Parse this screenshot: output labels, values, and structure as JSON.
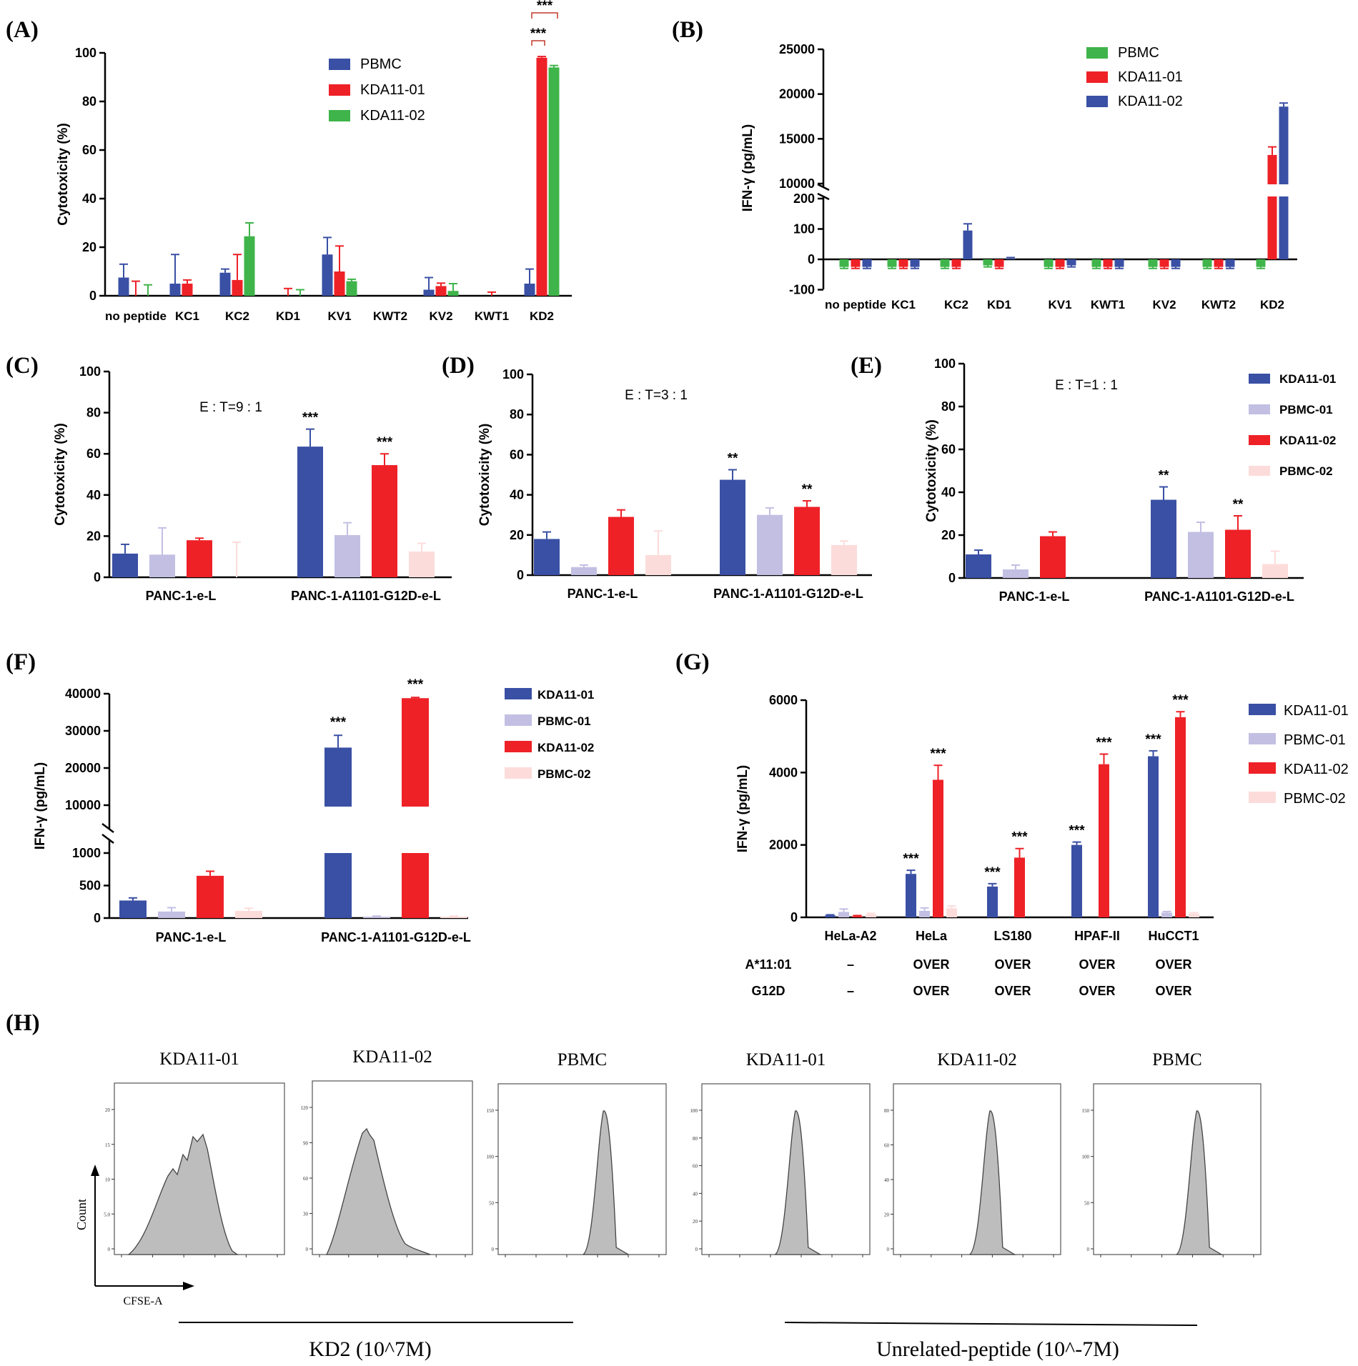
{
  "colors": {
    "blue": "#3a50a4",
    "red": "#ee2127",
    "green": "#3fb44a",
    "lavender": "#c2bfe3",
    "pink": "#fcdcda",
    "gray": "#bdbdbd"
  },
  "panels": {
    "A": {
      "label": "(A)"
    },
    "B": {
      "label": "(B)"
    },
    "C": {
      "label": "(C)"
    },
    "D": {
      "label": "(D)"
    },
    "E": {
      "label": "(E)"
    },
    "F": {
      "label": "(F)"
    },
    "G": {
      "label": "(G)"
    },
    "H": {
      "label": "(H)"
    }
  },
  "chart_data": [
    {
      "id": "A",
      "type": "bar",
      "ylabel": "Cytotoxicity (%)",
      "ylim": [
        0,
        100
      ],
      "yticks": [
        0,
        20,
        40,
        60,
        80,
        100
      ],
      "categories": [
        "no peptide",
        "KC1",
        "KC2",
        "KD1",
        "KV1",
        "KWT2",
        "KV2",
        "KWT1",
        "KD2"
      ],
      "series": [
        {
          "name": "PBMC",
          "color": "blue",
          "values": [
            7.5,
            5,
            9.5,
            0,
            17,
            0,
            2.5,
            0,
            5
          ],
          "errors": [
            5.5,
            12,
            1.5,
            0,
            7,
            0,
            5,
            0,
            6
          ]
        },
        {
          "name": "KDA11-01",
          "color": "red",
          "values": [
            0,
            5,
            6.5,
            0,
            10,
            0,
            4,
            0,
            98
          ],
          "errors": [
            6,
            1.5,
            10.5,
            3,
            10.5,
            0,
            1.2,
            1.5,
            0.5
          ]
        },
        {
          "name": "KDA11-02",
          "color": "green",
          "values": [
            0,
            0,
            24.5,
            0,
            6,
            0,
            2,
            0,
            94
          ],
          "errors": [
            4.5,
            0,
            5.5,
            2.5,
            0.8,
            0,
            3,
            0,
            0.8
          ]
        }
      ],
      "significance": [
        "***",
        "***"
      ]
    },
    {
      "id": "B",
      "type": "bar",
      "ylabel": "IFN-γ (pg/mL)",
      "axis_break": true,
      "yticks": [
        "-100",
        "0",
        "100",
        "200",
        "10000",
        "15000",
        "20000",
        "25000"
      ],
      "categories": [
        "no peptide",
        "KC1",
        "KC2",
        "KD1",
        "KV1",
        "KWT1",
        "KV2",
        "KWT2",
        "KD2"
      ],
      "series": [
        {
          "name": "PBMC",
          "color": "green",
          "values": [
            -25,
            -25,
            -25,
            -20,
            -25,
            -25,
            -25,
            -25,
            -25
          ],
          "errors": [
            5,
            5,
            5,
            5,
            5,
            5,
            5,
            5,
            5
          ]
        },
        {
          "name": "KDA11-01",
          "color": "red",
          "values": [
            -25,
            -25,
            -25,
            -25,
            -25,
            -25,
            -25,
            -25,
            13200
          ],
          "errors": [
            5,
            5,
            5,
            5,
            5,
            5,
            5,
            5,
            900
          ]
        },
        {
          "name": "KDA11-02",
          "color": "blue",
          "values": [
            -25,
            -25,
            95,
            2,
            -20,
            -25,
            -25,
            -25,
            18600
          ],
          "errors": [
            5,
            5,
            22,
            4,
            5,
            5,
            5,
            5,
            400
          ]
        }
      ]
    },
    {
      "id": "C",
      "type": "bar",
      "ylabel": "Cytotoxicity (%)",
      "annotation": "E : T=9 : 1",
      "ylim": [
        0,
        100
      ],
      "yticks": [
        0,
        20,
        40,
        60,
        80,
        100
      ],
      "categories": [
        "PANC-1-e-L",
        "PANC-1-A1101-G12D-e-L"
      ],
      "series": [
        {
          "name": "KDA11-01",
          "color": "blue",
          "values": [
            11.5,
            63.5
          ],
          "errors": [
            4.5,
            8.5
          ]
        },
        {
          "name": "PBMC-01",
          "color": "lavender",
          "values": [
            11,
            20.5
          ],
          "errors": [
            13,
            6
          ]
        },
        {
          "name": "KDA11-02",
          "color": "red",
          "values": [
            18,
            54.5
          ],
          "errors": [
            1,
            5.5
          ]
        },
        {
          "name": "PBMC-02",
          "color": "pink",
          "values": [
            0,
            12.5
          ],
          "errors": [
            17,
            4
          ]
        }
      ],
      "significance": [
        "***",
        "***"
      ]
    },
    {
      "id": "D",
      "type": "bar",
      "ylabel": "Cytotoxicity (%)",
      "annotation": "E : T=3 : 1",
      "ylim": [
        0,
        100
      ],
      "yticks": [
        0,
        20,
        40,
        60,
        80,
        100
      ],
      "categories": [
        "PANC-1-e-L",
        "PANC-1-A1101-G12D-e-L"
      ],
      "series": [
        {
          "name": "KDA11-01",
          "color": "blue",
          "values": [
            18,
            47.5
          ],
          "errors": [
            3.5,
            5
          ]
        },
        {
          "name": "PBMC-01",
          "color": "lavender",
          "values": [
            4,
            30
          ],
          "errors": [
            1,
            3.5
          ]
        },
        {
          "name": "KDA11-02",
          "color": "red",
          "values": [
            29,
            34
          ],
          "errors": [
            3.5,
            3
          ]
        },
        {
          "name": "PBMC-02",
          "color": "pink",
          "values": [
            10,
            15
          ],
          "errors": [
            12,
            2
          ]
        }
      ],
      "significance": [
        "**",
        "**"
      ]
    },
    {
      "id": "E",
      "type": "bar",
      "ylabel": "Cytotoxicity (%)",
      "annotation": "E : T=1 : 1",
      "ylim": [
        0,
        100
      ],
      "yticks": [
        0,
        20,
        40,
        60,
        80,
        100
      ],
      "categories": [
        "PANC-1-e-L",
        "PANC-1-A1101-G12D-e-L"
      ],
      "series": [
        {
          "name": "KDA11-01",
          "color": "blue",
          "values": [
            11,
            36.5
          ],
          "errors": [
            2,
            6
          ]
        },
        {
          "name": "PBMC-01",
          "color": "lavender",
          "values": [
            4,
            21.5
          ],
          "errors": [
            2,
            4.5
          ]
        },
        {
          "name": "KDA11-02",
          "color": "red",
          "values": [
            19.5,
            22.5
          ],
          "errors": [
            2,
            6.5
          ]
        },
        {
          "name": "PBMC-02",
          "color": "pink",
          "values": [
            0,
            6.5
          ],
          "errors": [
            0,
            6
          ]
        }
      ],
      "significance": [
        "**",
        "**"
      ]
    },
    {
      "id": "F",
      "type": "bar",
      "ylabel": "IFN-γ (pg/mL)",
      "axis_break": true,
      "yticks": [
        "0",
        "500",
        "1000",
        "10000",
        "20000",
        "30000",
        "40000"
      ],
      "categories": [
        "PANC-1-e-L",
        "PANC-1-A1101-G12D-e-L"
      ],
      "series": [
        {
          "name": "KDA11-01",
          "color": "blue",
          "values": [
            270,
            25500
          ],
          "errors": [
            40,
            3300
          ]
        },
        {
          "name": "PBMC-01",
          "color": "lavender",
          "values": [
            100,
            20
          ],
          "errors": [
            60,
            10
          ]
        },
        {
          "name": "KDA11-02",
          "color": "red",
          "values": [
            650,
            38800
          ],
          "errors": [
            70,
            200
          ]
        },
        {
          "name": "PBMC-02",
          "color": "pink",
          "values": [
            110,
            20
          ],
          "errors": [
            40,
            10
          ]
        }
      ],
      "significance": [
        "***",
        "***"
      ]
    },
    {
      "id": "G",
      "type": "bar",
      "ylabel": "IFN-γ (pg/mL)",
      "ylim": [
        0,
        6000
      ],
      "yticks": [
        0,
        2000,
        4000,
        6000
      ],
      "categories": [
        "HeLa-A2",
        "HeLa",
        "LS180",
        "HPAF-II",
        "HuCCT1"
      ],
      "series": [
        {
          "name": "KDA11-01",
          "color": "blue",
          "values": [
            50,
            1200,
            850,
            2000,
            4450
          ],
          "errors": [
            20,
            100,
            80,
            80,
            150
          ]
        },
        {
          "name": "PBMC-01",
          "color": "lavender",
          "values": [
            150,
            180,
            0,
            0,
            130
          ],
          "errors": [
            80,
            80,
            0,
            0,
            30
          ]
        },
        {
          "name": "KDA11-02",
          "color": "red",
          "values": [
            30,
            3800,
            1650,
            4230,
            5530
          ],
          "errors": [
            20,
            400,
            250,
            280,
            150
          ]
        },
        {
          "name": "PBMC-02",
          "color": "pink",
          "values": [
            80,
            250,
            0,
            0,
            100
          ],
          "errors": [
            30,
            60,
            0,
            0,
            30
          ]
        }
      ],
      "significance": [
        "***",
        "***",
        "***",
        "***",
        "***",
        "***",
        "***",
        "***"
      ],
      "table": {
        "rows": [
          {
            "label": "A*11:01",
            "values": [
              "–",
              "OVER",
              "OVER",
              "OVER",
              "OVER"
            ]
          },
          {
            "label": "G12D",
            "values": [
              "–",
              "OVER",
              "OVER",
              "OVER",
              "OVER"
            ]
          }
        ]
      }
    },
    {
      "id": "H",
      "type": "histogram",
      "xlabel": "CFSE-A",
      "ylabel": "Count",
      "plots": [
        {
          "title": "KDA11-01",
          "yticks": [
            "0",
            "5.0",
            "10",
            "15",
            "20"
          ]
        },
        {
          "title": "KDA11-02",
          "yticks": [
            "0",
            "30",
            "60",
            "90",
            "120"
          ]
        },
        {
          "title": "PBMC",
          "yticks": [
            "0",
            "50",
            "100",
            "150"
          ]
        },
        {
          "title": "KDA11-01",
          "yticks": [
            "0",
            "20",
            "40",
            "60",
            "80",
            "100"
          ]
        },
        {
          "title": "KDA11-02",
          "yticks": [
            "0",
            "20",
            "40",
            "60",
            "80"
          ]
        },
        {
          "title": "PBMC",
          "yticks": [
            "0",
            "50",
            "100",
            "150"
          ]
        }
      ],
      "group_labels": [
        "KD2 (10^7M)",
        "Unrelated-peptide (10^-7M)"
      ]
    }
  ]
}
